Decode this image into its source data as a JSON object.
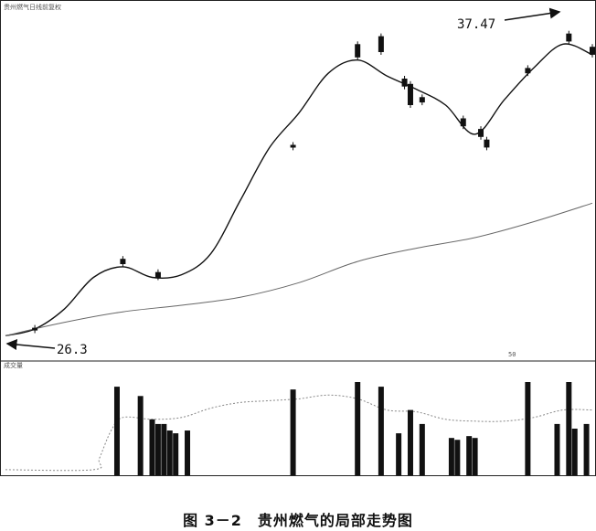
{
  "caption": "图 3－2　贵州燃气的局部走势图",
  "header_text": "贵州燃气日线前复权",
  "volume_panel_label": "成交量",
  "corner_mark": "50",
  "chart_data": [
    {
      "type": "candlestick",
      "title": "",
      "annotations": [
        {
          "text": "26.3",
          "points_to": "low-left"
        },
        {
          "text": "37.47",
          "points_to": "high-right"
        }
      ],
      "price_low": 26.3,
      "price_high": 37.47,
      "ylim": [
        26.0,
        38.0
      ],
      "grid": false,
      "series": [
        {
          "name": "",
          "kind": "moving-average-short",
          "index": [
            0,
            5,
            10,
            15,
            20,
            25,
            30,
            35,
            40,
            45,
            50,
            55,
            60,
            65,
            70,
            75,
            80,
            85,
            90,
            95,
            100
          ],
          "values": [
            26.3,
            26.55,
            27.3,
            28.5,
            28.9,
            28.5,
            28.6,
            29.4,
            31.4,
            33.4,
            34.7,
            36.2,
            36.7,
            36.1,
            35.6,
            35.0,
            33.9,
            35.2,
            36.4,
            37.3,
            36.9
          ]
        },
        {
          "name": "",
          "kind": "moving-average-long",
          "index": [
            0,
            10,
            20,
            30,
            40,
            50,
            60,
            70,
            80,
            90,
            100
          ],
          "values": [
            26.3,
            26.8,
            27.2,
            27.45,
            27.75,
            28.3,
            29.1,
            29.6,
            30.0,
            30.6,
            31.3
          ]
        }
      ],
      "candles": [
        {
          "i": 5,
          "open": 26.6,
          "close": 26.5
        },
        {
          "i": 20,
          "open": 29.2,
          "close": 29.0
        },
        {
          "i": 26,
          "open": 28.7,
          "close": 28.5
        },
        {
          "i": 49,
          "open": 33.5,
          "close": 33.4
        },
        {
          "i": 60,
          "open": 37.3,
          "close": 36.8
        },
        {
          "i": 64,
          "open": 37.6,
          "close": 37.0
        },
        {
          "i": 68,
          "open": 36.0,
          "close": 35.7
        },
        {
          "i": 69,
          "open": 35.8,
          "close": 35.0
        },
        {
          "i": 71,
          "open": 35.3,
          "close": 35.1
        },
        {
          "i": 78,
          "open": 34.5,
          "close": 34.2
        },
        {
          "i": 81,
          "open": 34.1,
          "close": 33.8
        },
        {
          "i": 82,
          "open": 33.7,
          "close": 33.4
        },
        {
          "i": 89,
          "open": 36.4,
          "close": 36.2
        },
        {
          "i": 96,
          "open": 37.7,
          "close": 37.4
        },
        {
          "i": 100,
          "open": 37.2,
          "close": 36.9
        }
      ]
    },
    {
      "type": "bar",
      "title": "",
      "ylabel": "",
      "ylim": [
        0,
        100
      ],
      "x": [
        19,
        23,
        25,
        26,
        27,
        28,
        29,
        31,
        49,
        60,
        64,
        67,
        69,
        71,
        76,
        77,
        79,
        80,
        89,
        94,
        96,
        97,
        99
      ],
      "values": [
        95,
        85,
        60,
        55,
        55,
        48,
        45,
        48,
        92,
        100,
        95,
        45,
        70,
        55,
        40,
        38,
        42,
        40,
        100,
        55,
        100,
        50,
        55
      ],
      "baseline_series": {
        "name": "",
        "x": [
          0,
          15,
          16,
          18,
          20,
          25,
          30,
          35,
          40,
          45,
          50,
          55,
          60,
          65,
          70,
          75,
          80,
          85,
          90,
          95,
          100
        ],
        "values": [
          6,
          6,
          18,
          48,
          62,
          60,
          62,
          72,
          78,
          80,
          82,
          86,
          82,
          70,
          68,
          60,
          58,
          58,
          62,
          70,
          70
        ]
      }
    }
  ]
}
